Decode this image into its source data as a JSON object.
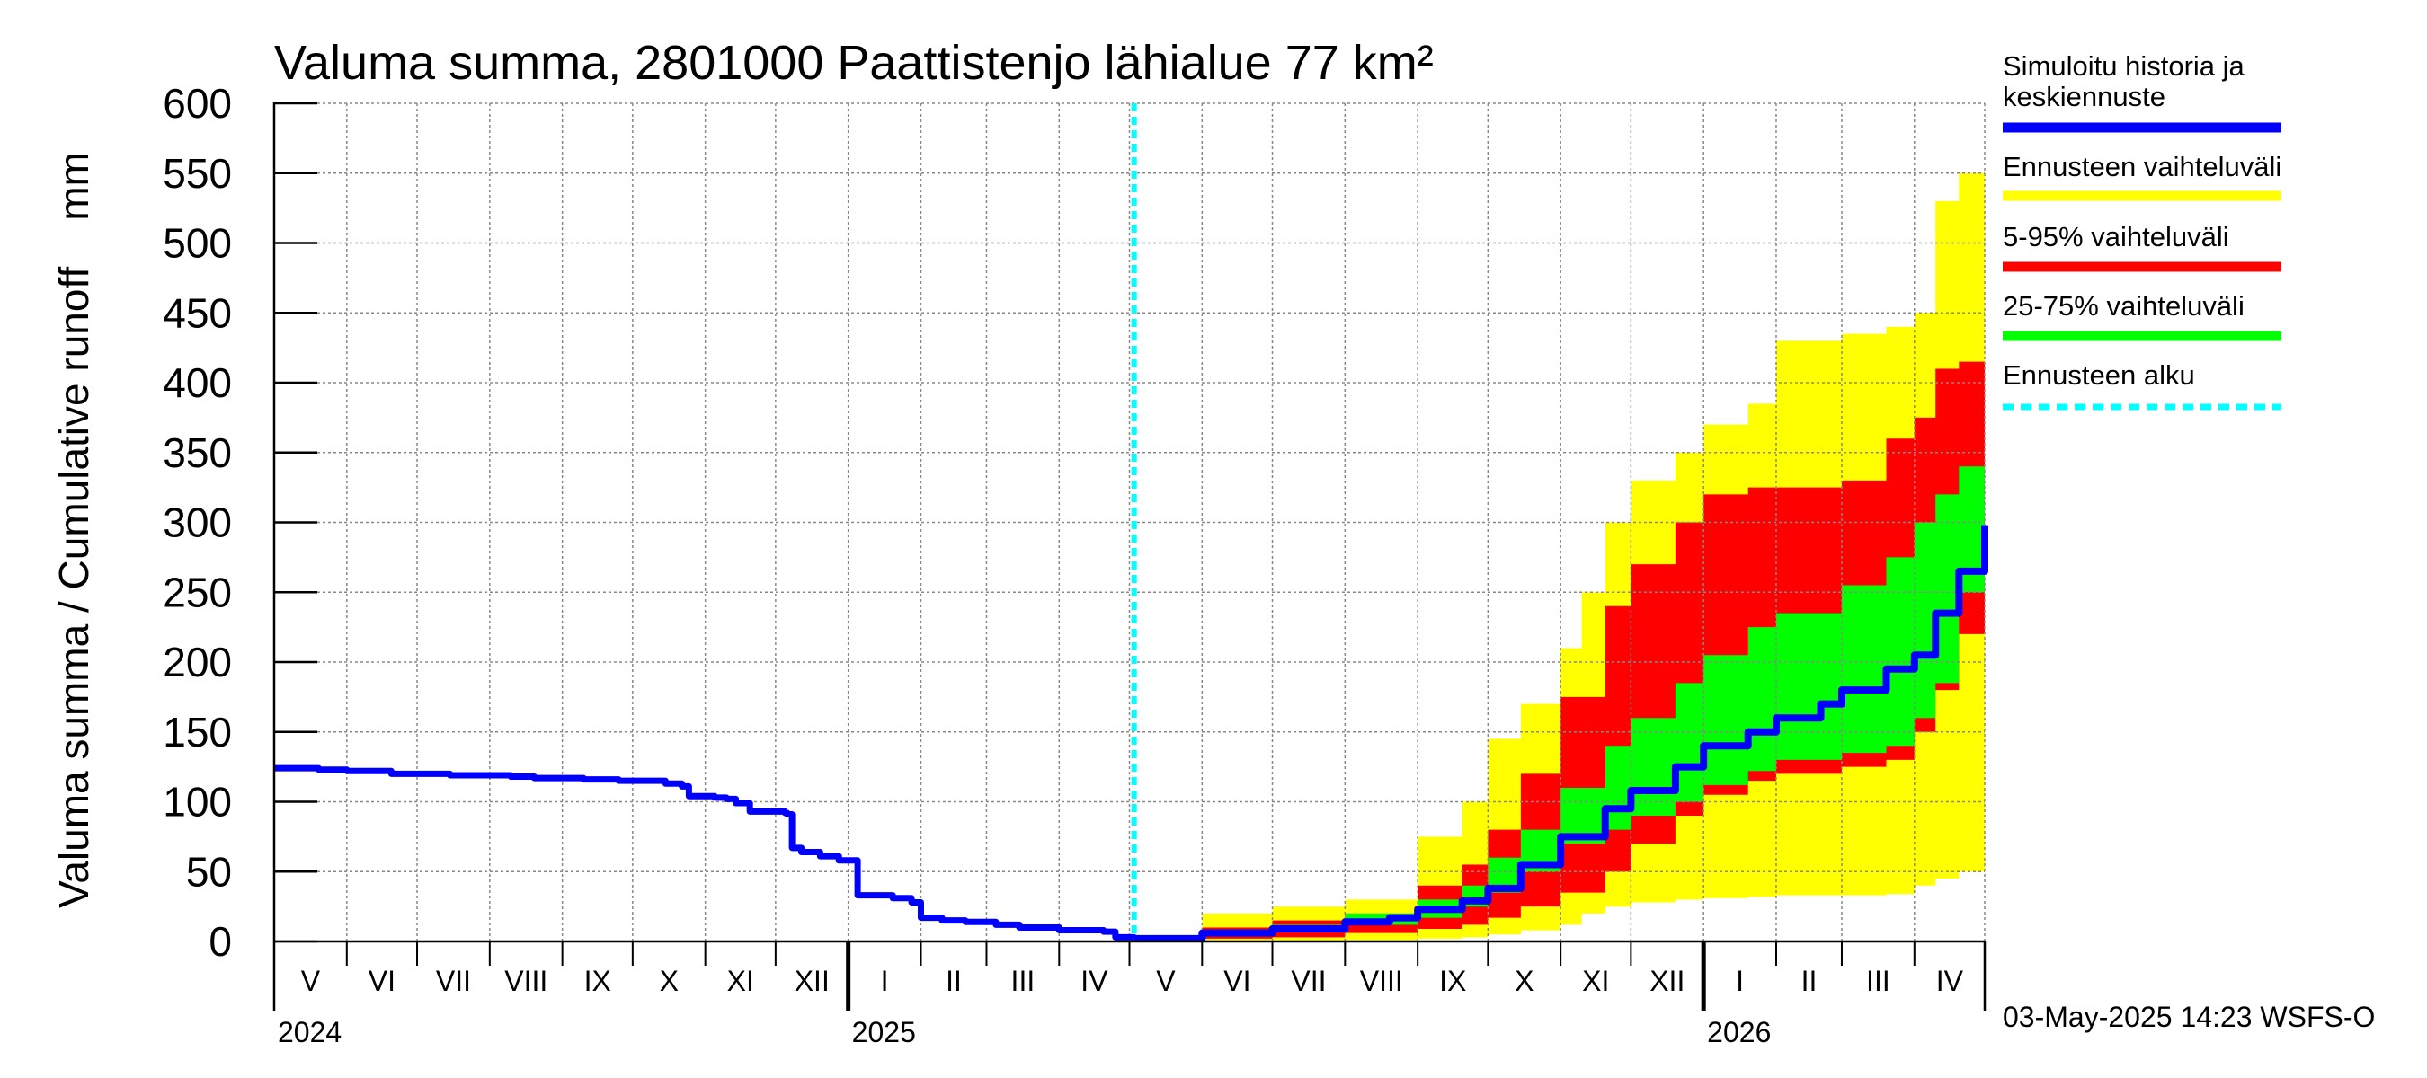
{
  "chart_data": {
    "type": "area",
    "title": "Valuma summa, 2801000 Paattistenjo lähialue 77 km²",
    "ylabel": "Valuma summa / Cumulative runoff    mm",
    "ylim": [
      0,
      600
    ],
    "yticks": [
      0,
      50,
      100,
      150,
      200,
      250,
      300,
      350,
      400,
      450,
      500,
      550,
      600
    ],
    "xlim": [
      "2024-05-01",
      "2026-05-01"
    ],
    "forecast_start": "2025-05-03",
    "grid": true,
    "legend_position": "right",
    "month_labels": [
      {
        "label": "V",
        "start": "2024-05-01",
        "end": "2024-06-01"
      },
      {
        "label": "VI",
        "start": "2024-06-01",
        "end": "2024-07-01"
      },
      {
        "label": "VII",
        "start": "2024-07-01",
        "end": "2024-08-01"
      },
      {
        "label": "VIII",
        "start": "2024-08-01",
        "end": "2024-09-01"
      },
      {
        "label": "IX",
        "start": "2024-09-01",
        "end": "2024-10-01"
      },
      {
        "label": "X",
        "start": "2024-10-01",
        "end": "2024-11-01"
      },
      {
        "label": "XI",
        "start": "2024-11-01",
        "end": "2024-12-01"
      },
      {
        "label": "XII",
        "start": "2024-12-01",
        "end": "2025-01-01"
      },
      {
        "label": "I",
        "start": "2025-01-01",
        "end": "2025-02-01"
      },
      {
        "label": "II",
        "start": "2025-02-01",
        "end": "2025-03-01"
      },
      {
        "label": "III",
        "start": "2025-03-01",
        "end": "2025-04-01"
      },
      {
        "label": "IV",
        "start": "2025-04-01",
        "end": "2025-05-01"
      },
      {
        "label": "V",
        "start": "2025-05-01",
        "end": "2025-06-01"
      },
      {
        "label": "VI",
        "start": "2025-06-01",
        "end": "2025-07-01"
      },
      {
        "label": "VII",
        "start": "2025-07-01",
        "end": "2025-08-01"
      },
      {
        "label": "VIII",
        "start": "2025-08-01",
        "end": "2025-09-01"
      },
      {
        "label": "IX",
        "start": "2025-09-01",
        "end": "2025-10-01"
      },
      {
        "label": "X",
        "start": "2025-10-01",
        "end": "2025-11-01"
      },
      {
        "label": "XI",
        "start": "2025-11-01",
        "end": "2025-12-01"
      },
      {
        "label": "XII",
        "start": "2025-12-01",
        "end": "2026-01-01"
      },
      {
        "label": "I",
        "start": "2026-01-01",
        "end": "2026-02-01"
      },
      {
        "label": "II",
        "start": "2026-02-01",
        "end": "2026-03-01"
      },
      {
        "label": "III",
        "start": "2026-03-01",
        "end": "2026-04-01"
      },
      {
        "label": "IV",
        "start": "2026-04-01",
        "end": "2026-05-01"
      }
    ],
    "year_labels": [
      {
        "label": "2024",
        "date": "2024-05-01"
      },
      {
        "label": "2025",
        "date": "2025-01-01"
      },
      {
        "label": "2026",
        "date": "2026-01-01"
      }
    ],
    "history": {
      "x": [
        "2024-05-01",
        "2024-05-20",
        "2024-06-01",
        "2024-06-20",
        "2024-07-15",
        "2024-08-10",
        "2024-08-20",
        "2024-09-10",
        "2024-09-25",
        "2024-10-15",
        "2024-10-22",
        "2024-10-25",
        "2024-11-05",
        "2024-11-10",
        "2024-11-14",
        "2024-11-20",
        "2024-12-05",
        "2024-12-06",
        "2024-12-08",
        "2024-12-12",
        "2024-12-20",
        "2024-12-28",
        "2025-01-05",
        "2025-01-20",
        "2025-01-28",
        "2025-02-01",
        "2025-02-10",
        "2025-02-20",
        "2025-03-05",
        "2025-03-15",
        "2025-04-01",
        "2025-04-20",
        "2025-04-25",
        "2025-05-03"
      ],
      "y": [
        124,
        123,
        122,
        120,
        119,
        118,
        117,
        116,
        115,
        113,
        111,
        104,
        103,
        102,
        99,
        93,
        92,
        91,
        67,
        64,
        61,
        58,
        33,
        31,
        28,
        17,
        15,
        14,
        12,
        10,
        8,
        7,
        3,
        2
      ]
    },
    "series": [
      {
        "name": "Simuloitu historia ja keskiennuste",
        "color": "#0000ff",
        "x": [
          "2025-05-03",
          "2025-06-01",
          "2025-07-01",
          "2025-08-01",
          "2025-08-20",
          "2025-09-01",
          "2025-09-20",
          "2025-10-01",
          "2025-10-15",
          "2025-11-01",
          "2025-11-20",
          "2025-12-01",
          "2025-12-20",
          "2026-01-01",
          "2026-01-20",
          "2026-02-01",
          "2026-02-20",
          "2026-03-01",
          "2026-03-20",
          "2026-04-01",
          "2026-04-10",
          "2026-04-20",
          "2026-05-01"
        ],
        "y": [
          2,
          6,
          9,
          14,
          17,
          23,
          29,
          38,
          55,
          75,
          95,
          108,
          125,
          140,
          150,
          160,
          170,
          180,
          195,
          205,
          235,
          265,
          298
        ]
      },
      {
        "name": "Ennusteen vaihteluväli",
        "color": "#ffff00",
        "x": [
          "2025-05-03",
          "2025-06-01",
          "2025-07-01",
          "2025-08-01",
          "2025-09-01",
          "2025-09-20",
          "2025-10-01",
          "2025-10-15",
          "2025-11-01",
          "2025-11-10",
          "2025-11-20",
          "2025-12-01",
          "2025-12-20",
          "2026-01-01",
          "2026-01-20",
          "2026-02-01",
          "2026-03-01",
          "2026-03-20",
          "2026-04-01",
          "2026-04-10",
          "2026-04-20",
          "2026-05-01"
        ],
        "upper": [
          2,
          20,
          25,
          30,
          75,
          100,
          145,
          170,
          210,
          250,
          300,
          330,
          350,
          370,
          385,
          430,
          435,
          440,
          450,
          530,
          550,
          560
        ],
        "lower": [
          0,
          0,
          0,
          0,
          1,
          2,
          3,
          5,
          8,
          12,
          20,
          25,
          28,
          30,
          31,
          32,
          33,
          33,
          34,
          40,
          45,
          50
        ]
      },
      {
        "name": "5-95% vaihteluväli",
        "color": "#ff0000",
        "x": [
          "2025-05-03",
          "2025-06-01",
          "2025-07-01",
          "2025-08-01",
          "2025-09-01",
          "2025-09-20",
          "2025-10-01",
          "2025-10-15",
          "2025-11-01",
          "2025-11-20",
          "2025-12-01",
          "2025-12-20",
          "2026-01-01",
          "2026-01-20",
          "2026-02-01",
          "2026-03-01",
          "2026-03-20",
          "2026-04-01",
          "2026-04-10",
          "2026-04-20",
          "2026-05-01"
        ],
        "upper": [
          2,
          10,
          15,
          20,
          40,
          55,
          80,
          120,
          175,
          240,
          270,
          300,
          320,
          325,
          325,
          330,
          360,
          375,
          410,
          415,
          420
        ],
        "lower": [
          0,
          1,
          2,
          3,
          6,
          9,
          12,
          17,
          25,
          35,
          50,
          70,
          90,
          105,
          115,
          120,
          125,
          130,
          150,
          180,
          220
        ]
      },
      {
        "name": "25-75% vaihteluväli",
        "color": "#00ff00",
        "x": [
          "2025-05-03",
          "2025-06-01",
          "2025-07-01",
          "2025-08-01",
          "2025-09-01",
          "2025-09-20",
          "2025-10-01",
          "2025-10-15",
          "2025-11-01",
          "2025-11-20",
          "2025-12-01",
          "2025-12-20",
          "2026-01-01",
          "2026-01-20",
          "2026-02-01",
          "2026-03-01",
          "2026-03-20",
          "2026-04-01",
          "2026-04-10",
          "2026-04-20",
          "2026-05-01"
        ],
        "upper": [
          2,
          8,
          12,
          20,
          30,
          40,
          60,
          80,
          110,
          140,
          160,
          185,
          205,
          225,
          235,
          255,
          275,
          300,
          320,
          340,
          355
        ],
        "lower": [
          0,
          3,
          5,
          7,
          12,
          17,
          25,
          35,
          50,
          70,
          80,
          90,
          100,
          112,
          122,
          130,
          135,
          140,
          160,
          185,
          250
        ]
      },
      {
        "name": "Ennusteen alku",
        "color": "#00ffff"
      }
    ]
  },
  "footer": {
    "timestamp": "03-May-2025 14:23 WSFS-O"
  }
}
